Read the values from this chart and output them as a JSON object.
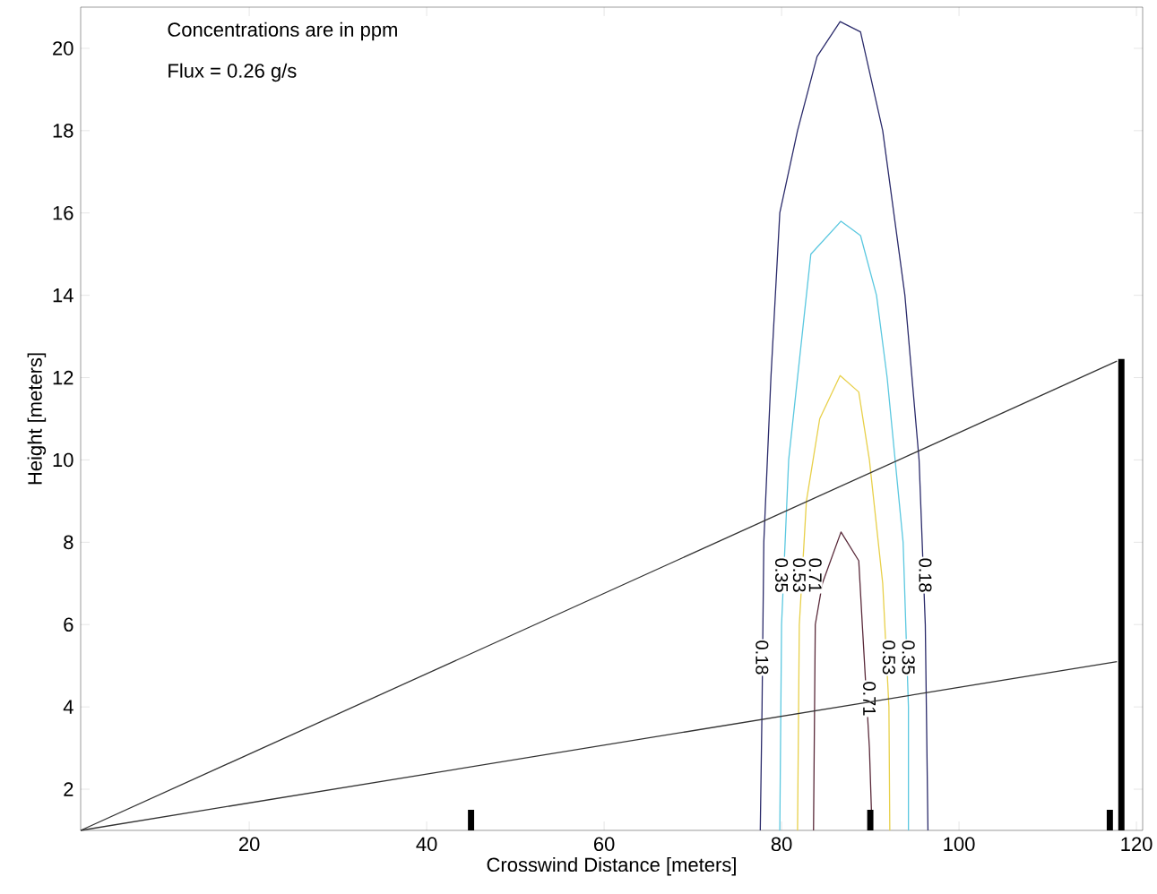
{
  "chart_data": {
    "type": "line",
    "xlabel": "Crosswind Distance [meters]",
    "ylabel": "Height [meters]",
    "annotations": [
      "Concentrations are in ppm",
      "Flux = 0.26 g/s"
    ],
    "xlim": [
      1,
      120.7
    ],
    "ylim": [
      1,
      21
    ],
    "xticks": [
      20,
      40,
      60,
      80,
      100,
      120
    ],
    "yticks": [
      2,
      4,
      6,
      8,
      10,
      12,
      14,
      16,
      18,
      20
    ],
    "grid": false,
    "legend": false,
    "series": [
      {
        "name": "0.18",
        "color": "#2b2b6b",
        "x": [
          77.6,
          77.8,
          78,
          78.8,
          79.8,
          81.8,
          84,
          86.6,
          88.9,
          91.4,
          93.9,
          95.5,
          96.2,
          96.5
        ],
        "values": [
          1,
          4,
          8,
          12,
          16,
          18,
          19.8,
          20.65,
          20.4,
          18,
          14,
          10,
          6,
          1
        ]
      },
      {
        "name": "0.35",
        "color": "#5bc8e0",
        "x": [
          79.8,
          80,
          80.8,
          82.3,
          83.3,
          86.7,
          88.9,
          90.7,
          91.9,
          93.7,
          94.3,
          94.3
        ],
        "values": [
          1,
          6,
          10,
          13,
          15,
          15.8,
          15.45,
          14,
          12,
          8,
          4,
          1
        ]
      },
      {
        "name": "0.53",
        "color": "#e8d04a",
        "x": [
          81.8,
          82,
          82.8,
          84.3,
          86.6,
          88.7,
          89.9,
          91.4,
          92.1,
          92.2
        ],
        "values": [
          1,
          6,
          9,
          11,
          12.05,
          11.65,
          10,
          7,
          4,
          1
        ]
      },
      {
        "name": "0.71",
        "color": "#5a2a3a",
        "x": [
          83.6,
          83.8,
          84.6,
          86.7,
          88.7,
          89.1,
          89.9,
          90.2
        ],
        "values": [
          1,
          6,
          7,
          8.25,
          7.55,
          6,
          3,
          1
        ]
      },
      {
        "color": "#333333",
        "x": [
          1,
          117.8
        ],
        "values": [
          1,
          12.4
        ]
      },
      {
        "color": "#333333",
        "x": [
          1,
          117.8
        ],
        "values": [
          1,
          5.1
        ]
      },
      {
        "type": "bar",
        "color": "#000000",
        "x": [
          45,
          90,
          117,
          118.3
        ],
        "base": [
          1,
          1,
          1,
          1
        ],
        "values": [
          0.5,
          0.5,
          0.5,
          11.45
        ]
      }
    ]
  }
}
